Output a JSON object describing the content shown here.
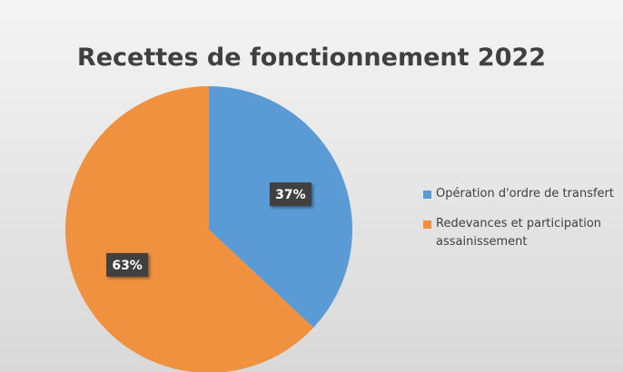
{
  "chart_data": {
    "type": "pie",
    "title": "Recettes de fonctionnement 2022",
    "categories": [
      "Opération d'ordre de transfert",
      "Redevances et participation assainissement"
    ],
    "values": [
      37,
      63
    ],
    "value_labels": [
      "37%",
      "63%"
    ],
    "colors": [
      "#5b9bd5",
      "#f0913f"
    ],
    "legend": "right"
  }
}
